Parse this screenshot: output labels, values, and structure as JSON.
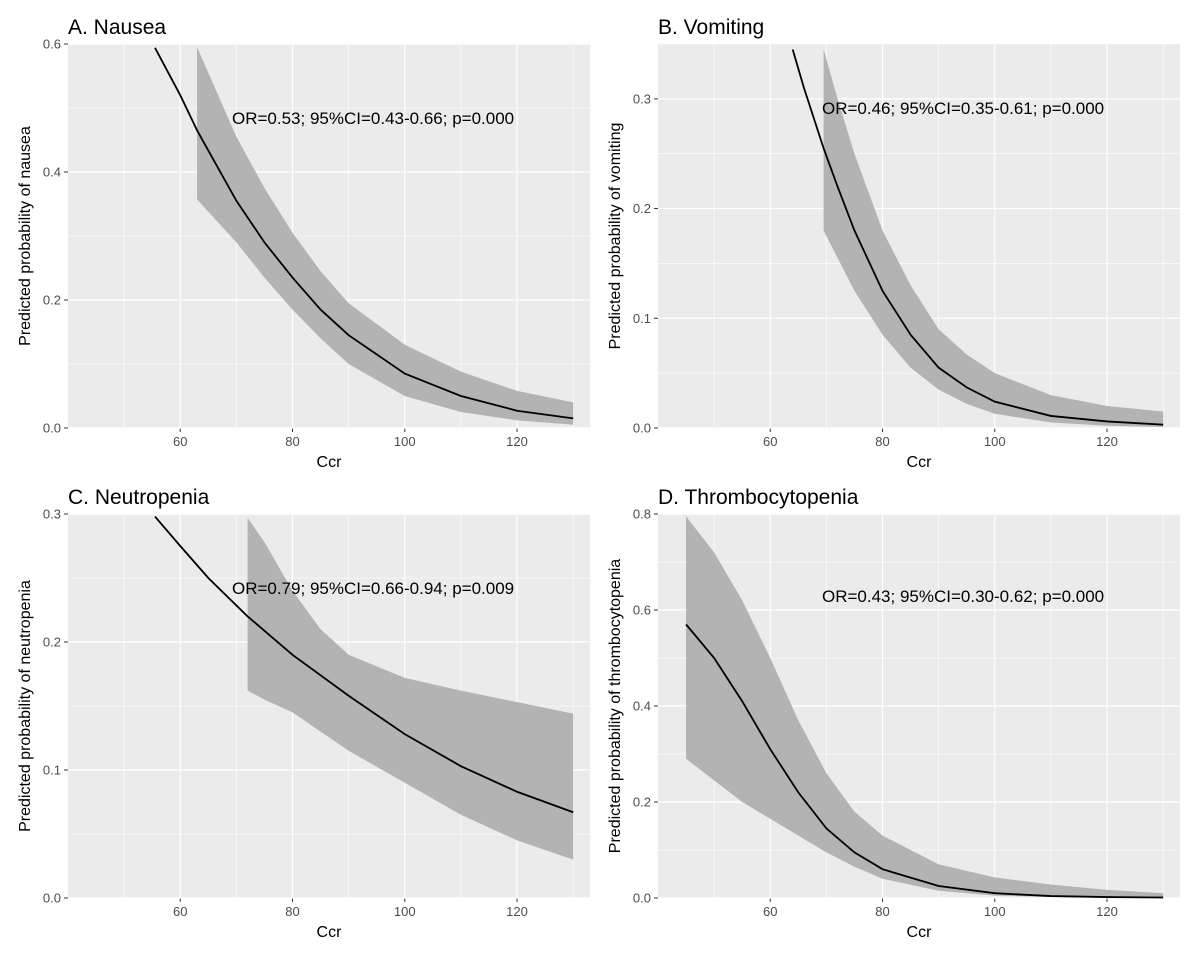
{
  "figure": {
    "panel_background": "#ebebeb",
    "gridline_color": "#ffffff",
    "ribbon_color": "#b3b3b3",
    "line_color": "#000000"
  },
  "chart_data": [
    {
      "type": "line",
      "title": "A. Nausea",
      "xlabel": "Ccr",
      "ylabel": "Predicted probability of nausea",
      "annotation": "OR=0.53; 95%CI=0.43-0.66; p=0.000",
      "xlim": [
        40,
        133
      ],
      "ylim": [
        0,
        0.6
      ],
      "x_ticks": [
        60,
        80,
        100,
        120
      ],
      "x_tick_labels": [
        "60",
        "80",
        "100",
        "120"
      ],
      "y_ticks": [
        0,
        0.2,
        0.4,
        0.6
      ],
      "y_tick_labels": [
        "0.0",
        "0.2",
        "0.4",
        "0.6"
      ],
      "grid": true,
      "series": [
        {
          "x": [
            55.5,
            60,
            63,
            70,
            75,
            80,
            85,
            90,
            100,
            110,
            120,
            130
          ],
          "y": [
            0.594,
            0.52,
            0.465,
            0.355,
            0.29,
            0.235,
            0.185,
            0.145,
            0.085,
            0.05,
            0.027,
            0.015
          ]
        }
      ],
      "ribbon": {
        "x": [
          63,
          70,
          75,
          80,
          85,
          90,
          100,
          110,
          120,
          130
        ],
        "lower": [
          0.357,
          0.29,
          0.235,
          0.185,
          0.14,
          0.1,
          0.05,
          0.025,
          0.012,
          0.005
        ],
        "upper": [
          0.595,
          0.455,
          0.375,
          0.305,
          0.245,
          0.195,
          0.13,
          0.088,
          0.058,
          0.04
        ]
      }
    },
    {
      "type": "line",
      "title": "B. Vomiting",
      "xlabel": "Ccr",
      "ylabel": "Predicted probability of vomiting",
      "annotation": "OR=0.46; 95%CI=0.35-0.61; p=0.000",
      "xlim": [
        40,
        133
      ],
      "ylim": [
        0,
        0.35
      ],
      "x_ticks": [
        60,
        80,
        100,
        120
      ],
      "x_tick_labels": [
        "60",
        "80",
        "100",
        "120"
      ],
      "y_ticks": [
        0,
        0.1,
        0.2,
        0.3
      ],
      "y_tick_labels": [
        "0.0",
        "0.1",
        "0.2",
        "0.3"
      ],
      "grid": true,
      "series": [
        {
          "x": [
            64,
            66,
            69.5,
            72,
            75,
            80,
            85,
            90,
            95,
            100,
            110,
            120,
            130
          ],
          "y": [
            0.345,
            0.31,
            0.255,
            0.22,
            0.18,
            0.125,
            0.085,
            0.055,
            0.037,
            0.024,
            0.011,
            0.006,
            0.003
          ]
        }
      ],
      "ribbon": {
        "x": [
          69.5,
          72,
          75,
          80,
          85,
          90,
          95,
          100,
          110,
          120,
          130
        ],
        "lower": [
          0.18,
          0.155,
          0.125,
          0.085,
          0.055,
          0.035,
          0.022,
          0.013,
          0.005,
          0.002,
          0.001
        ],
        "upper": [
          0.345,
          0.3,
          0.25,
          0.18,
          0.13,
          0.09,
          0.067,
          0.05,
          0.03,
          0.02,
          0.015
        ]
      }
    },
    {
      "type": "line",
      "title": "C. Neutropenia",
      "xlabel": "Ccr",
      "ylabel": "Predicted probability of neutropenia",
      "annotation": "OR=0.79; 95%CI=0.66-0.94; p=0.009",
      "xlim": [
        40,
        133
      ],
      "ylim": [
        0,
        0.3
      ],
      "x_ticks": [
        60,
        80,
        100,
        120
      ],
      "x_tick_labels": [
        "60",
        "80",
        "100",
        "120"
      ],
      "y_ticks": [
        0,
        0.1,
        0.2,
        0.3
      ],
      "y_tick_labels": [
        "0.0",
        "0.1",
        "0.2",
        "0.3"
      ],
      "grid": true,
      "series": [
        {
          "x": [
            55.5,
            60,
            65,
            72,
            80,
            90,
            100,
            110,
            120,
            130
          ],
          "y": [
            0.298,
            0.275,
            0.25,
            0.22,
            0.19,
            0.158,
            0.128,
            0.103,
            0.083,
            0.067
          ]
        }
      ],
      "ribbon": {
        "x": [
          72,
          75,
          80,
          85,
          90,
          100,
          110,
          120,
          130
        ],
        "lower": [
          0.162,
          0.155,
          0.145,
          0.13,
          0.115,
          0.09,
          0.065,
          0.045,
          0.03
        ],
        "upper": [
          0.297,
          0.278,
          0.24,
          0.21,
          0.19,
          0.172,
          0.162,
          0.153,
          0.144
        ]
      }
    },
    {
      "type": "line",
      "title": "D. Thrombocytopenia",
      "xlabel": "Ccr",
      "ylabel": "Predicted probability of thrombocytopenia",
      "annotation": "OR=0.43; 95%CI=0.30-0.62; p=0.000",
      "xlim": [
        40,
        133
      ],
      "ylim": [
        0,
        0.8
      ],
      "x_ticks": [
        60,
        80,
        100,
        120
      ],
      "x_tick_labels": [
        "60",
        "80",
        "100",
        "120"
      ],
      "y_ticks": [
        0,
        0.2,
        0.4,
        0.6,
        0.8
      ],
      "y_tick_labels": [
        "0.0",
        "0.2",
        "0.4",
        "0.6",
        "0.8"
      ],
      "grid": true,
      "series": [
        {
          "x": [
            45,
            50,
            55,
            60,
            65,
            70,
            75,
            80,
            90,
            100,
            110,
            120,
            130
          ],
          "y": [
            0.57,
            0.5,
            0.41,
            0.31,
            0.22,
            0.145,
            0.095,
            0.06,
            0.025,
            0.01,
            0.004,
            0.002,
            0.001
          ]
        }
      ],
      "ribbon": {
        "x": [
          45,
          50,
          55,
          60,
          65,
          70,
          75,
          80,
          90,
          100,
          110,
          120,
          130
        ],
        "lower": [
          0.29,
          0.245,
          0.2,
          0.165,
          0.13,
          0.095,
          0.065,
          0.04,
          0.015,
          0.005,
          0.002,
          0.001,
          0.0
        ],
        "upper": [
          0.795,
          0.72,
          0.62,
          0.5,
          0.37,
          0.26,
          0.18,
          0.13,
          0.07,
          0.043,
          0.028,
          0.017,
          0.01
        ]
      }
    }
  ]
}
